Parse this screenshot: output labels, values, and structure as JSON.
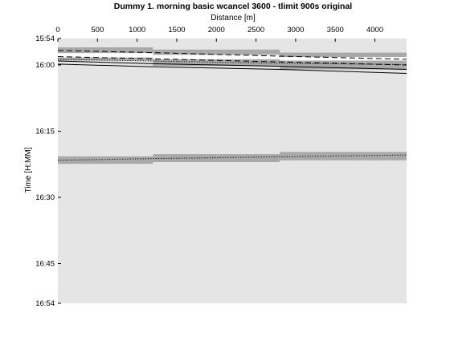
{
  "chart_data": {
    "type": "line",
    "title": "Dummy 1. morning basic wcancel 3600 - tlimit 900s original",
    "xlabel": "Distance [m]",
    "ylabel": "Time [H:MM]",
    "xlim": [
      0,
      4400
    ],
    "ylim_minutes": [
      954,
      1014
    ],
    "x_ticks": [
      0,
      500,
      1000,
      1500,
      2000,
      2500,
      3000,
      3500,
      4000
    ],
    "x_tick_labels": [
      "0",
      "500",
      "1000",
      "1500",
      "2000",
      "2500",
      "3000",
      "3500",
      "4000"
    ],
    "y_ticks_minutes": [
      954,
      960,
      975,
      990,
      1005,
      1014
    ],
    "y_tick_labels": [
      "15:54",
      "16:00",
      "16:15",
      "16:30",
      "16:45",
      "16:54"
    ],
    "x_axis_position": "top",
    "y_axis_reversed": true,
    "grid": false,
    "colors": {
      "plot_background": "#e5e5e5",
      "occupation_block": "#a9a9a9",
      "free_gap": "#ffffff",
      "train_line": "#000000"
    },
    "occupation_blocks": [
      {
        "x": [
          0,
          1200
        ],
        "y_minutes": [
          956.0,
          959.0
        ]
      },
      {
        "x": [
          1200,
          2800
        ],
        "y_minutes": [
          956.5,
          960.2
        ]
      },
      {
        "x": [
          2800,
          4400
        ],
        "y_minutes": [
          957.2,
          961.0
        ]
      },
      {
        "x": [
          0,
          1200
        ],
        "y_minutes": [
          980.7,
          982.4
        ]
      },
      {
        "x": [
          1200,
          2800
        ],
        "y_minutes": [
          980.2,
          982.0
        ]
      },
      {
        "x": [
          2800,
          4400
        ],
        "y_minutes": [
          979.7,
          981.6
        ]
      }
    ],
    "free_gaps": [
      {
        "x": [
          0,
          1200
        ],
        "y_minutes": [
          957.3,
          958.3
        ]
      },
      {
        "x": [
          1200,
          2800
        ],
        "y_minutes": [
          957.7,
          958.7
        ]
      },
      {
        "x": [
          2800,
          4400
        ],
        "y_minutes": [
          958.2,
          959.0
        ]
      }
    ],
    "series": [
      {
        "style": "dashed",
        "x": [
          0,
          1200,
          2800,
          4400
        ],
        "y_minutes": [
          956.7,
          957.2,
          958.0,
          958.7
        ]
      },
      {
        "style": "dashed",
        "x": [
          0,
          1200,
          2800,
          4400
        ],
        "y_minutes": [
          958.1,
          958.6,
          959.3,
          960.0
        ]
      },
      {
        "style": "dotted",
        "x": [
          0,
          1200,
          2800,
          4400
        ],
        "y_minutes": [
          958.7,
          959.1,
          959.6,
          959.9
        ]
      },
      {
        "style": "solid",
        "x": [
          0,
          1200,
          2800,
          4400
        ],
        "y_minutes": [
          959.1,
          959.7,
          960.3,
          961.0
        ]
      },
      {
        "style": "solid",
        "x": [
          0,
          1200,
          2800,
          4400
        ],
        "y_minutes": [
          959.8,
          960.4,
          961.0,
          961.9
        ]
      },
      {
        "style": "dotted",
        "x": [
          0,
          1200,
          2800,
          4400
        ],
        "y_minutes": [
          981.6,
          981.2,
          980.8,
          980.4
        ]
      }
    ]
  }
}
